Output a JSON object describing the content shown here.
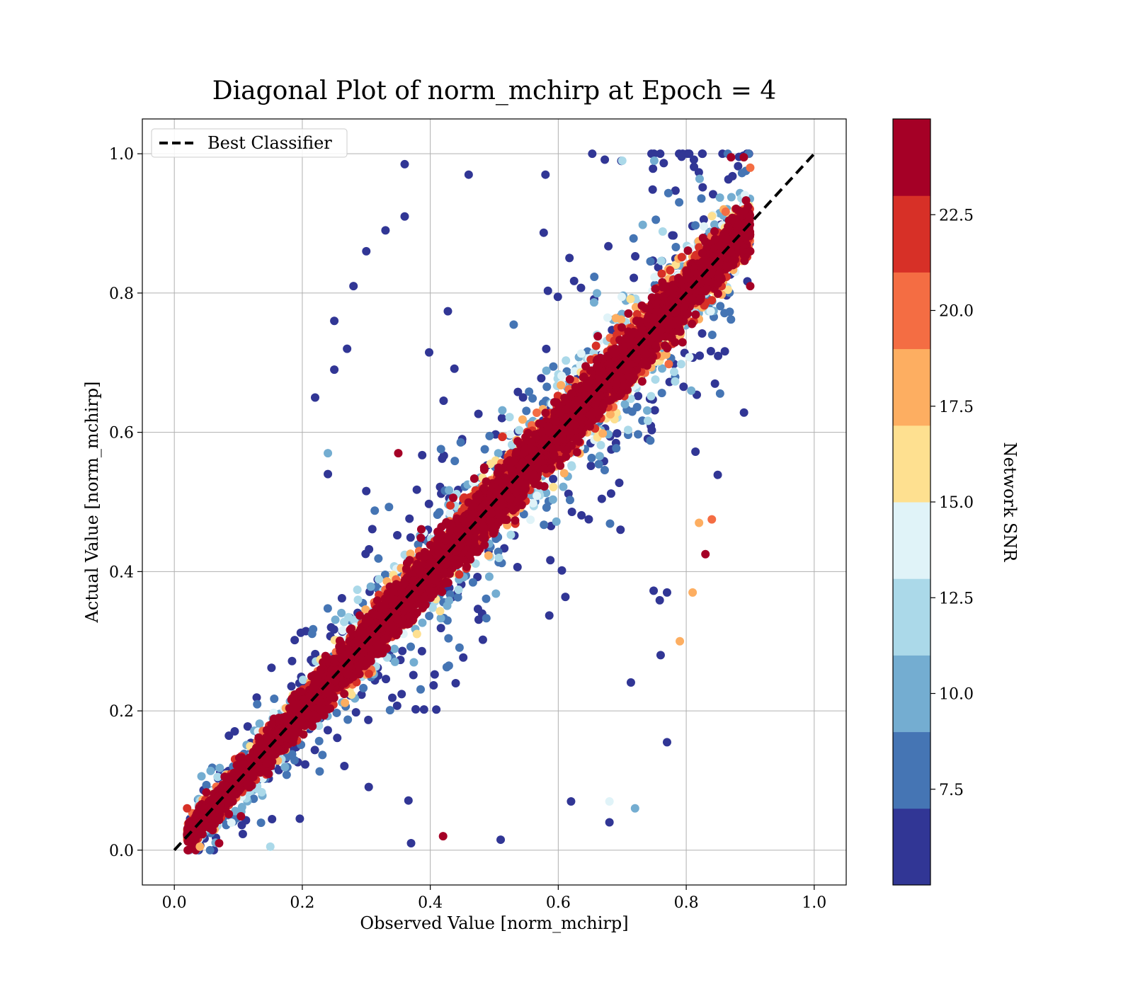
{
  "chart_data": {
    "type": "scatter",
    "title": "Diagonal Plot of norm_mchirp at Epoch = 4",
    "xlabel": "Observed Value [norm_mchirp]",
    "ylabel": "Actual Value [norm_mchirp]",
    "xlim": [
      -0.05,
      1.05
    ],
    "ylim": [
      -0.05,
      1.05
    ],
    "x_ticks": [
      "0.0",
      "0.2",
      "0.4",
      "0.6",
      "0.8",
      "1.0"
    ],
    "y_ticks": [
      "0.0",
      "0.2",
      "0.4",
      "0.6",
      "0.8",
      "1.0"
    ],
    "grid": true,
    "legend": {
      "position": "top-left",
      "entries": [
        "Best Classifier"
      ]
    },
    "reference_line": {
      "name": "Best Classifier",
      "style": "dashed",
      "color": "#000000",
      "x": [
        0,
        1
      ],
      "y": [
        0,
        1
      ]
    },
    "colorbar": {
      "label": "Network SNR",
      "range": [
        5,
        25
      ],
      "ticks": [
        "7.5",
        "10.0",
        "12.5",
        "15.0",
        "17.5",
        "20.0",
        "22.5"
      ],
      "tick_values": [
        7.5,
        10.0,
        12.5,
        15.0,
        17.5,
        20.0,
        22.5
      ],
      "colors": [
        "#313695",
        "#4575b4",
        "#74add1",
        "#abd9e9",
        "#e0f3f8",
        "#fee090",
        "#fdae61",
        "#f46d43",
        "#d73027",
        "#a50026"
      ],
      "bounds": [
        5,
        7.5,
        8.75,
        11.25,
        12.5,
        15.0,
        16.25,
        18.75,
        20.0,
        22.5,
        25
      ]
    },
    "scatter_summary": {
      "description_points": [
        {
          "x": 0.36,
          "y": 0.985,
          "snr": 6
        },
        {
          "x": 0.46,
          "y": 0.97,
          "snr": 6
        },
        {
          "x": 0.58,
          "y": 0.97,
          "snr": 6
        },
        {
          "x": 0.7,
          "y": 0.99,
          "snr": 12
        },
        {
          "x": 0.75,
          "y": 0.99,
          "snr": 10
        },
        {
          "x": 0.87,
          "y": 0.995,
          "snr": 24
        },
        {
          "x": 0.89,
          "y": 0.995,
          "snr": 24
        },
        {
          "x": 0.36,
          "y": 0.91,
          "snr": 6
        },
        {
          "x": 0.33,
          "y": 0.89,
          "snr": 6
        },
        {
          "x": 0.28,
          "y": 0.81,
          "snr": 6
        },
        {
          "x": 0.3,
          "y": 0.86,
          "snr": 6
        },
        {
          "x": 0.25,
          "y": 0.76,
          "snr": 6
        },
        {
          "x": 0.27,
          "y": 0.72,
          "snr": 6
        },
        {
          "x": 0.25,
          "y": 0.69,
          "snr": 6
        },
        {
          "x": 0.22,
          "y": 0.65,
          "snr": 6
        },
        {
          "x": 0.24,
          "y": 0.54,
          "snr": 6
        },
        {
          "x": 0.24,
          "y": 0.57,
          "snr": 10
        },
        {
          "x": 0.35,
          "y": 0.57,
          "snr": 24
        },
        {
          "x": 0.84,
          "y": 0.475,
          "snr": 20
        },
        {
          "x": 0.82,
          "y": 0.47,
          "snr": 17
        },
        {
          "x": 0.83,
          "y": 0.425,
          "snr": 24
        },
        {
          "x": 0.81,
          "y": 0.37,
          "snr": 17
        },
        {
          "x": 0.79,
          "y": 0.3,
          "snr": 17
        },
        {
          "x": 0.77,
          "y": 0.37,
          "snr": 6
        },
        {
          "x": 0.76,
          "y": 0.28,
          "snr": 6
        },
        {
          "x": 0.77,
          "y": 0.155,
          "snr": 6
        },
        {
          "x": 0.72,
          "y": 0.06,
          "snr": 10
        },
        {
          "x": 0.68,
          "y": 0.04,
          "snr": 6
        },
        {
          "x": 0.68,
          "y": 0.07,
          "snr": 13
        },
        {
          "x": 0.62,
          "y": 0.07,
          "snr": 6
        },
        {
          "x": 0.51,
          "y": 0.015,
          "snr": 6
        },
        {
          "x": 0.42,
          "y": 0.02,
          "snr": 23
        },
        {
          "x": 0.37,
          "y": 0.01,
          "snr": 6
        },
        {
          "x": 0.15,
          "y": 0.005,
          "snr": 12
        },
        {
          "x": 0.04,
          "y": 0.005,
          "snr": 17
        },
        {
          "x": 0.07,
          "y": 0.01,
          "snr": 24
        },
        {
          "x": 0.02,
          "y": 0.06,
          "snr": 22
        },
        {
          "x": 0.9,
          "y": 0.98,
          "snr": 20
        },
        {
          "x": 0.9,
          "y": 0.86,
          "snr": 24
        },
        {
          "x": 0.9,
          "y": 0.81,
          "snr": 24
        }
      ],
      "trend": "points cluster along the diagonal y = x; high SNR (red) tightly along the diagonal, low SNR (blue) widely scattered above and below"
    }
  }
}
